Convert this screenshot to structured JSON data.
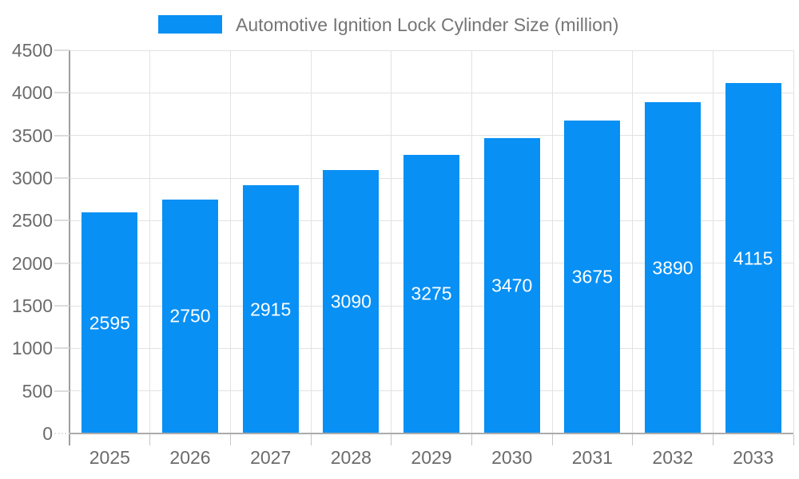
{
  "legend": {
    "label": "Automotive Ignition Lock Cylinder Size (million)"
  },
  "chart_data": {
    "type": "bar",
    "title": "Automotive Ignition Lock Cylinder Size (million)",
    "categories": [
      "2025",
      "2026",
      "2027",
      "2028",
      "2029",
      "2030",
      "2031",
      "2032",
      "2033"
    ],
    "values": [
      2595,
      2750,
      2915,
      3090,
      3275,
      3470,
      3675,
      3890,
      4115
    ],
    "xlabel": "",
    "ylabel": "",
    "ylim": [
      0,
      4500
    ],
    "yticks": [
      0,
      500,
      1000,
      1500,
      2000,
      2500,
      3000,
      3500,
      4000,
      4500
    ],
    "grid": true,
    "legend_position": "top-center",
    "value_label_style": "white-centered-inside-bar"
  },
  "colors": {
    "bar": "#0890f4",
    "gridline": "#e2e2e2",
    "axis_line": "#9e9e9e",
    "tick_label": "#6b6b6b",
    "legend_text": "#757575",
    "bar_value_text": "#ffffff",
    "background": "#ffffff"
  }
}
